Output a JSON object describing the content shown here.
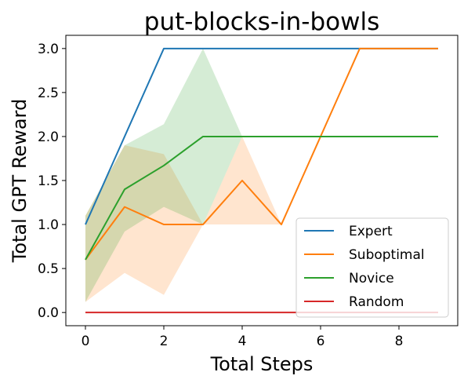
{
  "chart_data": {
    "type": "line",
    "title": "put-blocks-in-bowls",
    "xlabel": "Total Steps",
    "ylabel": "Total GPT Reward",
    "xlim": [
      -0.5,
      9.5
    ],
    "ylim": [
      -0.15,
      3.15
    ],
    "xticks": [
      0,
      2,
      4,
      6,
      8
    ],
    "yticks": [
      0.0,
      0.5,
      1.0,
      1.5,
      2.0,
      2.5,
      3.0
    ],
    "ytick_labels": [
      "0.0",
      "0.5",
      "1.0",
      "1.5",
      "2.0",
      "2.5",
      "3.0"
    ],
    "grid": false,
    "legend_position": "bottom-right",
    "series": [
      {
        "name": "Expert",
        "color": "#1f77b4",
        "x": [
          0,
          1,
          2,
          3,
          4,
          5,
          6,
          7,
          8,
          9
        ],
        "y": [
          1.0,
          2.0,
          3.0,
          3.0,
          3.0,
          3.0,
          3.0,
          3.0,
          3.0,
          3.0
        ],
        "band": null
      },
      {
        "name": "Suboptimal",
        "color": "#ff7f0e",
        "x": [
          0,
          1,
          2,
          3,
          4,
          5,
          6,
          7,
          8,
          9
        ],
        "y": [
          0.6,
          1.2,
          1.0,
          1.0,
          1.5,
          1.0,
          2.0,
          3.0,
          3.0,
          3.0
        ],
        "band": {
          "lower": [
            0.12,
            0.45,
            0.2,
            1.0,
            1.0,
            1.0,
            2.0,
            3.0,
            3.0,
            3.0
          ],
          "upper": [
            1.1,
            1.9,
            1.8,
            1.0,
            2.0,
            1.0,
            2.0,
            3.0,
            3.0,
            3.0
          ]
        }
      },
      {
        "name": "Novice",
        "color": "#2ca02c",
        "x": [
          0,
          1,
          2,
          3,
          4,
          5,
          6,
          7,
          8,
          9
        ],
        "y": [
          0.6,
          1.4,
          1.67,
          2.0,
          2.0,
          2.0,
          2.0,
          2.0,
          2.0,
          2.0
        ],
        "band": {
          "lower": [
            0.12,
            0.92,
            1.2,
            1.0,
            2.0,
            2.0,
            2.0,
            2.0,
            2.0,
            2.0
          ],
          "upper": [
            1.1,
            1.9,
            2.14,
            3.0,
            2.0,
            2.0,
            2.0,
            2.0,
            2.0,
            2.0
          ]
        }
      },
      {
        "name": "Random",
        "color": "#d62728",
        "x": [
          0,
          1,
          2,
          3,
          4,
          5,
          6,
          7,
          8,
          9
        ],
        "y": [
          0,
          0,
          0,
          0,
          0,
          0,
          0,
          0,
          0,
          0
        ],
        "band": null
      }
    ]
  }
}
